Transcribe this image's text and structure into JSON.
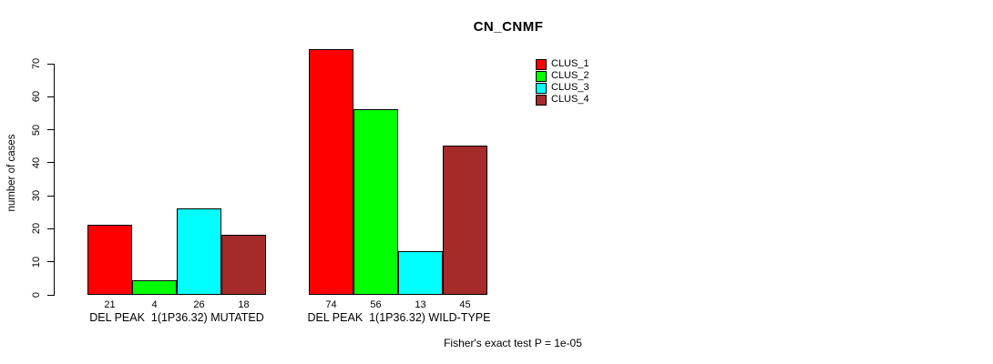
{
  "page": {
    "background": "#ffffff"
  },
  "chart_data": {
    "type": "bar",
    "title": "CN_CNMF",
    "ylabel": "number of cases",
    "xlabel": "",
    "categories": [
      "DEL PEAK  1(1P36.32) MUTATED",
      "DEL PEAK  1(1P36.32) WILD-TYPE"
    ],
    "series": [
      {
        "name": "CLUS_1",
        "color": "#ff0000",
        "values": [
          21,
          74
        ]
      },
      {
        "name": "CLUS_2",
        "color": "#00ff00",
        "values": [
          4,
          56
        ]
      },
      {
        "name": "CLUS_3",
        "color": "#00ffff",
        "values": [
          26,
          13
        ]
      },
      {
        "name": "CLUS_4",
        "color": "#a52a2a",
        "values": [
          18,
          45
        ]
      }
    ],
    "ylim": [
      0,
      70
    ],
    "yticks": [
      0,
      10,
      20,
      30,
      40,
      50,
      60,
      70
    ],
    "grid": false,
    "legend_position": "top-right",
    "show_value_labels": true,
    "annotation": "Fisher's exact test P = 1e-05"
  }
}
